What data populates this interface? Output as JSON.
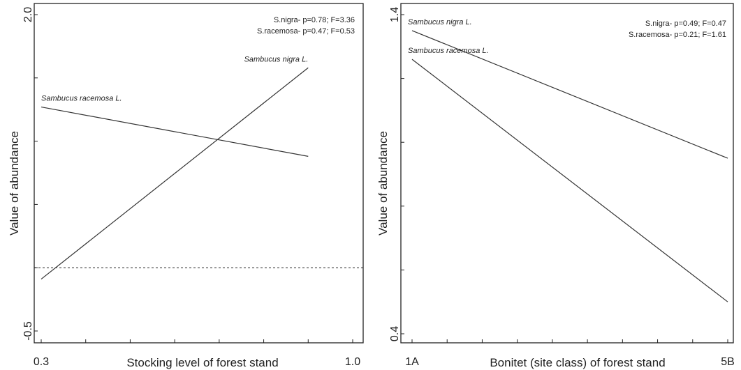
{
  "chart_data": [
    {
      "type": "line",
      "title": "",
      "xlabel": "Stocking level of forest stand",
      "ylabel": "Value of abundance",
      "xlim": [
        0.3,
        1.0
      ],
      "ylim": [
        -0.5,
        2.0
      ],
      "x_tick_labels": [
        {
          "value": 0.3,
          "label": "0.3"
        },
        {
          "value": 1.0,
          "label": "1.0"
        }
      ],
      "y_tick_labels": [
        {
          "value": -0.5,
          "label": "-0.5"
        },
        {
          "value": 2.0,
          "label": "2.0"
        }
      ],
      "reference_line": {
        "y": 0.0,
        "style": "dashed"
      },
      "annotations": [
        "S.nigra- p=0.78; F=3.36",
        "S.racemosa- p=0.47; F=0.53"
      ],
      "series": [
        {
          "name": "Sambucus nigra L.",
          "x": [
            0.3,
            0.9
          ],
          "y": [
            -0.09,
            1.58
          ]
        },
        {
          "name": "Sambucus racemosa L.",
          "x": [
            0.3,
            0.9
          ],
          "y": [
            1.27,
            0.88
          ]
        }
      ]
    },
    {
      "type": "line",
      "title": "",
      "xlabel": "Bonitet (site class) of forest stand",
      "ylabel": "Value of abundance",
      "xlim": [
        0,
        9
      ],
      "ylim": [
        0.4,
        1.4
      ],
      "x_tick_labels": [
        {
          "value": 0,
          "label": "1A"
        },
        {
          "value": 9,
          "label": "5B"
        }
      ],
      "y_tick_labels": [
        {
          "value": 0.4,
          "label": "0.4"
        },
        {
          "value": 1.4,
          "label": "1.4"
        }
      ],
      "annotations": [
        "S.nigra- p=0.49; F=0.47",
        "S.racemosa- p=0.21; F=1.61"
      ],
      "series": [
        {
          "name": "Sambucus nigra L.",
          "x": [
            0,
            9
          ],
          "y": [
            1.35,
            0.95
          ]
        },
        {
          "name": "Sambucus racemosa L.",
          "x": [
            0,
            9
          ],
          "y": [
            1.26,
            0.5
          ]
        }
      ]
    }
  ]
}
